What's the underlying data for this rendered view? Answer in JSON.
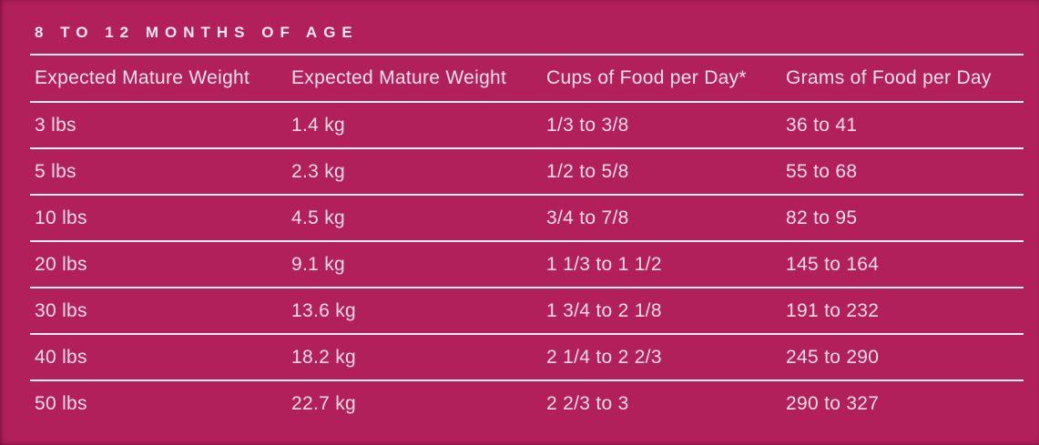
{
  "table": {
    "title": "8 TO 12 MONTHS OF AGE",
    "columns": [
      "Expected Mature Weight",
      "Expected Mature Weight",
      "Cups of Food per Day*",
      "Grams of Food per Day"
    ],
    "rows": [
      [
        "3 lbs",
        "1.4 kg",
        "1/3 to 3/8",
        "36 to 41"
      ],
      [
        "5 lbs",
        "2.3 kg",
        "1/2 to 5/8",
        "55 to 68"
      ],
      [
        "10 lbs",
        "4.5 kg",
        "3/4 to 7/8",
        "82 to 95"
      ],
      [
        "20 lbs",
        "9.1 kg",
        "1 1/3 to 1 1/2",
        "145 to 164"
      ],
      [
        "30 lbs",
        "13.6 kg",
        "1 3/4 to 2 1/8",
        "191 to 232"
      ],
      [
        "40 lbs",
        "18.2 kg",
        "2 1/4 to 2 2/3",
        "245 to 290"
      ],
      [
        "50 lbs",
        "22.7 kg",
        "2 2/3 to 3",
        "290 to 327"
      ]
    ]
  },
  "colors": {
    "background": "#B2205C",
    "rule": "#FBEFF4",
    "text": "#F6DBE6",
    "title_text": "#FBE7EF"
  },
  "chart_data": {
    "type": "table",
    "title": "8 TO 12 MONTHS OF AGE",
    "columns": [
      "Expected Mature Weight",
      "Expected Mature Weight",
      "Cups of Food per Day*",
      "Grams of Food per Day"
    ],
    "rows": [
      {
        "expected_mature_weight_lbs": "3 lbs",
        "expected_mature_weight_kg": "1.4 kg",
        "cups_of_food_per_day": "1/3 to 3/8",
        "grams_of_food_per_day": "36 to 41"
      },
      {
        "expected_mature_weight_lbs": "5 lbs",
        "expected_mature_weight_kg": "2.3 kg",
        "cups_of_food_per_day": "1/2 to 5/8",
        "grams_of_food_per_day": "55 to 68"
      },
      {
        "expected_mature_weight_lbs": "10 lbs",
        "expected_mature_weight_kg": "4.5 kg",
        "cups_of_food_per_day": "3/4 to 7/8",
        "grams_of_food_per_day": "82 to 95"
      },
      {
        "expected_mature_weight_lbs": "20 lbs",
        "expected_mature_weight_kg": "9.1 kg",
        "cups_of_food_per_day": "1 1/3 to 1 1/2",
        "grams_of_food_per_day": "145 to 164"
      },
      {
        "expected_mature_weight_lbs": "30 lbs",
        "expected_mature_weight_kg": "13.6 kg",
        "cups_of_food_per_day": "1 3/4 to 2 1/8",
        "grams_of_food_per_day": "191 to 232"
      },
      {
        "expected_mature_weight_lbs": "40 lbs",
        "expected_mature_weight_kg": "18.2 kg",
        "cups_of_food_per_day": "2 1/4 to 2 2/3",
        "grams_of_food_per_day": "245 to 290"
      },
      {
        "expected_mature_weight_lbs": "50 lbs",
        "expected_mature_weight_kg": "22.7 kg",
        "cups_of_food_per_day": "2 2/3 to 3",
        "grams_of_food_per_day": "290 to 327"
      }
    ]
  }
}
